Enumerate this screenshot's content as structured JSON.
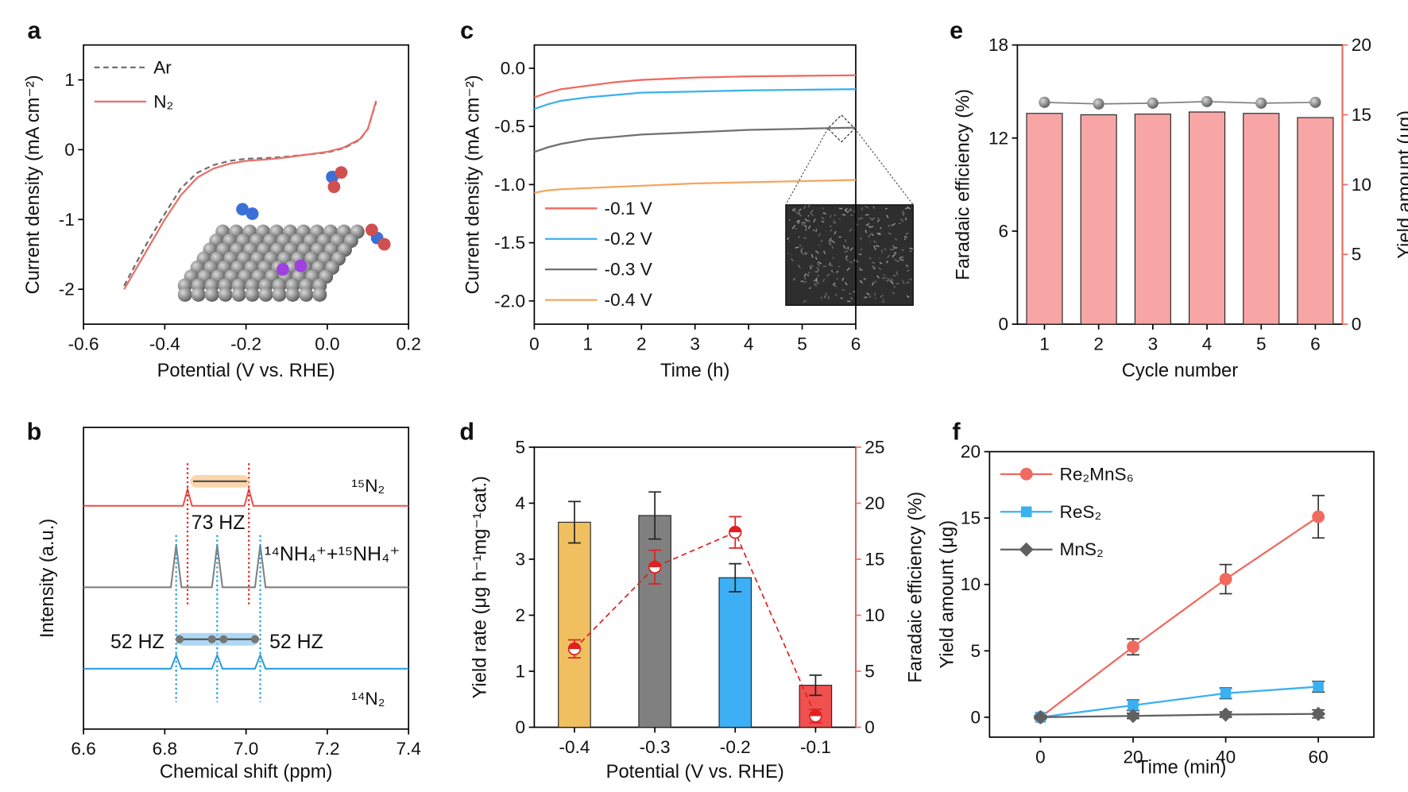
{
  "chart_data": [
    {
      "panel": "a",
      "type": "line",
      "xlabel": "Potential (V vs. RHE)",
      "ylabel": "Current density (mA cm⁻²)",
      "xlim": [
        -0.6,
        0.2
      ],
      "xticks": [
        -0.6,
        -0.4,
        -0.2,
        {
          "value": 0,
          "label": "0.0"
        },
        0.2
      ],
      "ylim": [
        -2.5,
        1.5
      ],
      "yticks": [
        -2,
        -1,
        0,
        1
      ],
      "legend": "upper-left",
      "x": [
        -0.5,
        -0.47,
        -0.44,
        -0.4,
        -0.36,
        -0.32,
        -0.28,
        -0.24,
        -0.2,
        -0.15,
        -0.1,
        -0.05,
        0,
        0.04,
        0.08,
        0.1,
        0.12
      ],
      "series": [
        {
          "name": "Ar",
          "color": "#707070",
          "dash": true,
          "values": [
            -1.95,
            -1.62,
            -1.3,
            -0.92,
            -0.55,
            -0.33,
            -0.22,
            -0.16,
            -0.13,
            -0.12,
            -0.1,
            -0.07,
            -0.04,
            0.02,
            0.14,
            0.3,
            0.68
          ]
        },
        {
          "name": "N₂",
          "color": "#e8706a",
          "values": [
            -2.0,
            -1.7,
            -1.4,
            -1.0,
            -0.65,
            -0.4,
            -0.27,
            -0.2,
            -0.16,
            -0.14,
            -0.11,
            -0.07,
            -0.03,
            0.03,
            0.15,
            0.3,
            0.7
          ]
        }
      ]
    },
    {
      "panel": "b",
      "type": "spectrum",
      "xlabel": "Chemical shift (ppm)",
      "ylabel": "Intensity (a.u.)",
      "xlim": [
        6.6,
        7.4
      ],
      "xticks": [
        6.6,
        6.8,
        {
          "value": 7,
          "label": "7.0"
        },
        7.2,
        7.4
      ],
      "ylim": [
        0,
        10
      ],
      "series": [
        {
          "name": "¹⁵N₂",
          "color": "#e8504a",
          "x": [
            6.6,
            6.845,
            6.856,
            6.867,
            6.996,
            7.007,
            7.018,
            7.4
          ],
          "values": [
            7.4,
            7.4,
            7.95,
            7.4,
            7.4,
            7.95,
            7.4,
            7.4
          ]
        },
        {
          "name": "¹⁴NH₄⁺+¹⁵NH₄⁺",
          "color": "#808080",
          "x": [
            6.6,
            6.815,
            6.828,
            6.841,
            6.916,
            6.929,
            6.942,
            7.022,
            7.035,
            7.048,
            7.4
          ],
          "values": [
            4.7,
            4.7,
            6.1,
            4.7,
            4.7,
            6.1,
            4.7,
            4.7,
            6.1,
            4.7,
            4.7
          ]
        },
        {
          "name": "¹⁴N₂",
          "color": "#2a9ee0",
          "x": [
            6.6,
            6.815,
            6.828,
            6.841,
            6.916,
            6.929,
            6.942,
            7.022,
            7.035,
            7.048,
            7.4
          ],
          "values": [
            2.0,
            2.0,
            2.45,
            2.0,
            2.0,
            2.45,
            2.0,
            2.0,
            2.45,
            2.0,
            2.0
          ]
        }
      ],
      "annotations": [
        "73 HZ",
        "52 HZ",
        "52 HZ"
      ]
    },
    {
      "panel": "c",
      "type": "line",
      "xlabel": "Time (h)",
      "ylabel": "Current density (mA cm⁻²)",
      "xlim": [
        0,
        6
      ],
      "xticks": [
        0,
        1,
        2,
        3,
        4,
        5,
        6
      ],
      "ylim": [
        -2.2,
        0.2
      ],
      "yticks": [
        {
          "value": -2,
          "label": "-2.0"
        },
        -1.5,
        {
          "value": -1,
          "label": "-1.0"
        },
        -0.5,
        {
          "value": 0,
          "label": "0.0"
        }
      ],
      "legend": "lower-left",
      "x": [
        0,
        0.25,
        0.5,
        1,
        1.5,
        2,
        3,
        4,
        5,
        6
      ],
      "series": [
        {
          "name": "-0.1 V",
          "color": "#f06a60",
          "values": [
            -0.25,
            -0.21,
            -0.18,
            -0.15,
            -0.12,
            -0.1,
            -0.08,
            -0.07,
            -0.065,
            -0.06
          ]
        },
        {
          "name": "-0.2 V",
          "color": "#3ab0f0",
          "values": [
            -0.35,
            -0.31,
            -0.28,
            -0.25,
            -0.23,
            -0.21,
            -0.2,
            -0.19,
            -0.185,
            -0.18
          ]
        },
        {
          "name": "-0.3 V",
          "color": "#707070",
          "values": [
            -0.72,
            -0.68,
            -0.65,
            -0.61,
            -0.59,
            -0.57,
            -0.55,
            -0.53,
            -0.52,
            -0.51
          ]
        },
        {
          "name": "-0.4 V",
          "color": "#f5a560",
          "values": [
            -1.07,
            -1.05,
            -1.04,
            -1.03,
            -1.02,
            -1.01,
            -0.99,
            -0.98,
            -0.97,
            -0.96
          ]
        }
      ]
    },
    {
      "panel": "d",
      "type": "bar-line",
      "xlabel": "Potential (V vs. RHE)",
      "ylabel": "Yield rate (μg h⁻¹mg⁻¹cat.)",
      "y2label": "Faradaic efficiency (%)",
      "categories": [
        "-0.4",
        "-0.3",
        "-0.2",
        "-0.1"
      ],
      "ylim": [
        0,
        5
      ],
      "yticks": [
        0,
        1,
        2,
        3,
        4,
        5
      ],
      "y2lim": [
        0,
        25
      ],
      "y2ticks": [
        0,
        5,
        10,
        15,
        20,
        25
      ],
      "y2color": "#f06a60",
      "bars": {
        "colors": [
          "#f0c060",
          "#808080",
          "#3db0f5",
          "#f05050"
        ],
        "values": [
          3.66,
          3.78,
          2.67,
          0.75
        ],
        "errors": [
          0.37,
          0.42,
          0.25,
          0.18
        ]
      },
      "line": {
        "axis": "y2",
        "color": "#e02020",
        "dash": true,
        "values": [
          7.0,
          14.3,
          17.4,
          1.0
        ],
        "errors": [
          0.8,
          1.5,
          1.4,
          0.6
        ]
      }
    },
    {
      "panel": "e",
      "type": "bar-line",
      "xlabel": "Cycle number",
      "ylabel": "Faradaic efficiency (%)",
      "y2label": "Yield amount (μg)",
      "categories": [
        "1",
        "2",
        "3",
        "4",
        "5",
        "6"
      ],
      "ylim": [
        0,
        18
      ],
      "yticks": [
        0,
        6,
        12,
        18
      ],
      "y2lim": [
        0,
        20
      ],
      "y2ticks": [
        0,
        5,
        10,
        15,
        20
      ],
      "y2color": "#f06a60",
      "bars": {
        "axis": "y2",
        "color": "#f7a5a5",
        "values": [
          15.1,
          15.0,
          15.05,
          15.2,
          15.1,
          14.8
        ]
      },
      "line": {
        "color": "#808080",
        "values": [
          14.3,
          14.2,
          14.25,
          14.35,
          14.25,
          14.3
        ]
      }
    },
    {
      "panel": "f",
      "type": "line",
      "xlabel": "Time (min)",
      "ylabel": "Yield amount (μg)",
      "xlim": [
        -11,
        72
      ],
      "xticks": [
        0,
        20,
        40,
        60
      ],
      "ylim": [
        -1.5,
        20
      ],
      "yticks": [
        0,
        5,
        10,
        15,
        20
      ],
      "legend": "upper-left",
      "x": [
        0,
        20,
        40,
        60
      ],
      "series": [
        {
          "name": "Re₂MnS₆",
          "color": "#f06a60",
          "marker": "circle",
          "values": [
            0,
            5.3,
            10.4,
            15.1
          ],
          "errors": [
            0.1,
            0.6,
            1.1,
            1.6
          ]
        },
        {
          "name": "ReS₂",
          "color": "#3ab0f0",
          "marker": "square",
          "values": [
            0,
            0.9,
            1.8,
            2.3
          ],
          "errors": [
            0.1,
            0.4,
            0.4,
            0.4
          ]
        },
        {
          "name": "MnS₂",
          "color": "#606060",
          "marker": "diamond",
          "values": [
            0,
            0.1,
            0.2,
            0.25
          ],
          "errors": [
            0.1,
            0.2,
            0.2,
            0.3
          ]
        }
      ]
    }
  ]
}
